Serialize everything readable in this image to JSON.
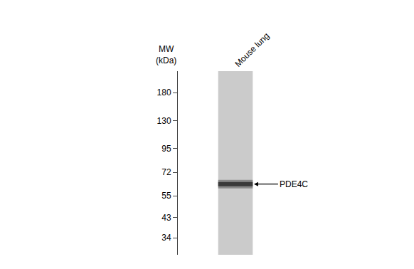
{
  "chart_data": {
    "type": "gel",
    "ylabel": "MW\n(kDa)",
    "categories": [
      "Mouse lung"
    ],
    "values": [
      63
    ],
    "annotations": [
      {
        "text": "PDE4C",
        "y": 63
      }
    ],
    "log": "y",
    "ylim": [
      28,
      230
    ],
    "yticks": [
      180,
      130,
      95,
      72,
      55,
      43,
      34
    ],
    "grid": false
  }
}
